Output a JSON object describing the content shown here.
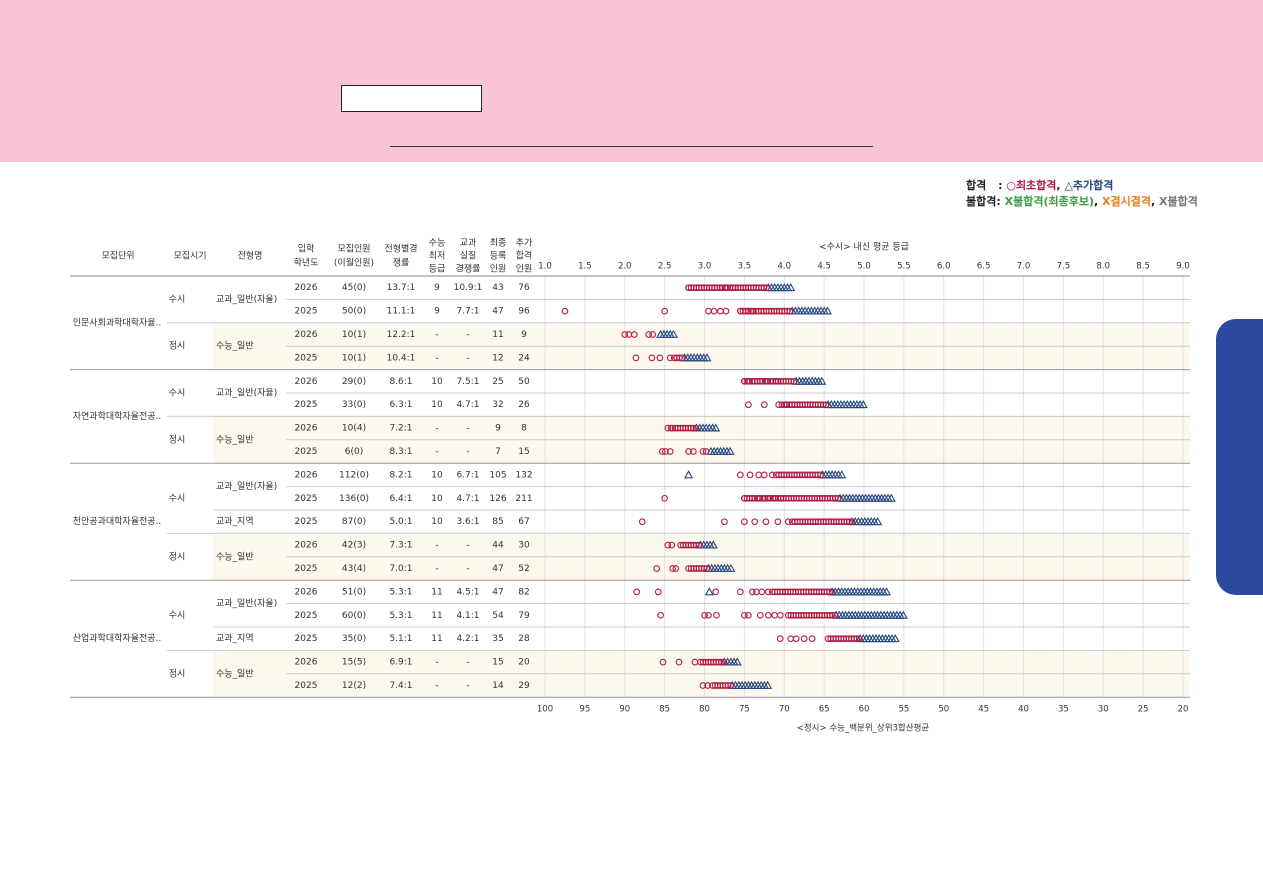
{
  "legend": {
    "pass_label": "합격",
    "pass_sep": ":",
    "first_pass": "○최초합격",
    "comma1": ",",
    "extra_pass": "△추가합격",
    "fail_label": "불합격:",
    "fail_final": "X불합격(최종후보)",
    "comma2": ",",
    "fail_absent": "X결시결격",
    "comma3": ",",
    "fail_other": "X불합격"
  },
  "headers": {
    "unit": "모집단위",
    "period": "모집시기",
    "type": "전형명",
    "year": [
      "입학",
      "학년도"
    ],
    "quota": [
      "모집인원",
      "(이월인원)"
    ],
    "ratio": [
      "전형별경",
      "쟁률"
    ],
    "csat_min": [
      "수능",
      "최저",
      "등급"
    ],
    "subject_ratio": [
      "교과",
      "실질",
      "경쟁률"
    ],
    "registered": [
      "최종",
      "등록",
      "인원"
    ],
    "additional": [
      "추가",
      "합격",
      "인원"
    ],
    "top_axis_title": "<수시> 내신 평균 등급",
    "bottom_axis_title": "<정시> 수능_백분위_상위3합산평균"
  },
  "colors": {
    "first_pass": "#b01c44",
    "extra_pass": "#24477f",
    "banner": "#f9c4d4",
    "side_tab": "#2b4aa0",
    "jeongsi_row_bg": "#fdf8ee"
  },
  "chart_data": {
    "type": "scatter",
    "top_axis": {
      "label": "<수시> 내신 평균 등급",
      "range": [
        1.0,
        9.0
      ],
      "ticks": [
        "1.0",
        "1.5",
        "2.0",
        "2.5",
        "3.0",
        "3.5",
        "4.0",
        "4.5",
        "5.0",
        "5.5",
        "6.0",
        "6.5",
        "7.0",
        "7.5",
        "8.0",
        "8.5",
        "9.0"
      ]
    },
    "bottom_axis": {
      "label": "<정시> 수능_백분위_상위3합산평균",
      "range": [
        100,
        20
      ],
      "ticks": [
        "100",
        "95",
        "90",
        "85",
        "80",
        "75",
        "70",
        "65",
        "60",
        "55",
        "50",
        "45",
        "40",
        "35",
        "30",
        "25",
        "20"
      ]
    },
    "grid": true,
    "legend_position": "top-right",
    "series_names": [
      "○최초합격",
      "△추가합격"
    ],
    "units": [
      {
        "name": "인문사회과학대학자율..",
        "periods": [
          {
            "name": "수시",
            "types": [
              {
                "name": "교과_일반(자율)",
                "rows": [
                  {
                    "year": "2026",
                    "quota": "45(0)",
                    "ratio": "13.7:1",
                    "csat": "9",
                    "real": "10.9:1",
                    "reg": "43",
                    "add": "76",
                    "scale": "grade",
                    "first_range": [
                      2.8,
                      3.35,
                      3.8
                    ],
                    "first_points": [
                      2.8,
                      3.22,
                      3.27,
                      3.36
                    ],
                    "extra_range": [
                      3.8,
                      4.1
                    ]
                  },
                  {
                    "year": "2025",
                    "quota": "50(0)",
                    "ratio": "11.1:1",
                    "csat": "9",
                    "real": "7.7:1",
                    "reg": "47",
                    "add": "96",
                    "scale": "grade",
                    "first_range": [
                      3.45,
                      4.1
                    ],
                    "first_points": [
                      1.25,
                      2.5,
                      3.05,
                      3.12,
                      3.2,
                      3.27,
                      3.45,
                      3.55,
                      3.6
                    ],
                    "extra_range": [
                      4.1,
                      4.55
                    ]
                  }
                ]
              }
            ]
          },
          {
            "name": "정시",
            "types": [
              {
                "name": "수능_일반",
                "rows": [
                  {
                    "year": "2026",
                    "quota": "10(1)",
                    "ratio": "12.2:1",
                    "csat": "-",
                    "real": "-",
                    "reg": "11",
                    "add": "9",
                    "scale": "percentile",
                    "first_range": [],
                    "first_points": [
                      90,
                      89.5,
                      88.8,
                      87,
                      86.5
                    ],
                    "extra_range": [
                      85.5,
                      83.8
                    ]
                  },
                  {
                    "year": "2025",
                    "quota": "10(1)",
                    "ratio": "10.4:1",
                    "csat": "-",
                    "real": "-",
                    "reg": "12",
                    "add": "24",
                    "scale": "percentile",
                    "first_range": [
                      83.8,
                      82.5
                    ],
                    "first_points": [
                      88.6,
                      86.6,
                      85.6,
                      84.3
                    ],
                    "extra_range": [
                      82.5,
                      79.5
                    ]
                  }
                ]
              }
            ]
          }
        ]
      },
      {
        "name": "자연과학대학자율전공..",
        "periods": [
          {
            "name": "수시",
            "types": [
              {
                "name": "교과_일반(자율)",
                "rows": [
                  {
                    "year": "2026",
                    "quota": "29(0)",
                    "ratio": "8.6:1",
                    "csat": "10",
                    "real": "7.5:1",
                    "reg": "25",
                    "add": "50",
                    "scale": "grade",
                    "first_range": [
                      3.5,
                      4.15
                    ],
                    "first_points": [
                      3.5,
                      3.55,
                      3.6,
                      3.7,
                      3.78,
                      3.9
                    ],
                    "extra_range": [
                      4.15,
                      4.5
                    ]
                  },
                  {
                    "year": "2025",
                    "quota": "33(0)",
                    "ratio": "6.3:1",
                    "csat": "10",
                    "real": "4.7:1",
                    "reg": "32",
                    "add": "26",
                    "scale": "grade",
                    "first_range": [
                      4.0,
                      4.55
                    ],
                    "first_points": [
                      3.55,
                      3.75,
                      3.93,
                      3.97,
                      4.02
                    ],
                    "extra_range": [
                      4.55,
                      5.0
                    ]
                  }
                ]
              }
            ]
          },
          {
            "name": "정시",
            "types": [
              {
                "name": "수능_일반",
                "rows": [
                  {
                    "year": "2026",
                    "quota": "10(4)",
                    "ratio": "7.2:1",
                    "csat": "-",
                    "real": "-",
                    "reg": "9",
                    "add": "8",
                    "scale": "percentile",
                    "first_range": [
                      84,
                      81
                    ],
                    "first_points": [
                      84.6,
                      84.2
                    ],
                    "extra_range": [
                      81,
                      78.5
                    ]
                  },
                  {
                    "year": "2025",
                    "quota": "6(0)",
                    "ratio": "8.3:1",
                    "csat": "-",
                    "real": "-",
                    "reg": "7",
                    "add": "15",
                    "scale": "percentile",
                    "first_range": [],
                    "first_points": [
                      85.3,
                      84.9,
                      84.3,
                      82,
                      81.4,
                      80.2,
                      79.8
                    ],
                    "extra_range": [
                      79.2,
                      76.5
                    ]
                  }
                ]
              }
            ]
          }
        ]
      },
      {
        "name": "천안공과대학자율전공..",
        "periods": [
          {
            "name": "수시",
            "types": [
              {
                "name": "교과_일반(자율)",
                "rows": [
                  {
                    "year": "2026",
                    "quota": "112(0)",
                    "ratio": "8.2:1",
                    "csat": "10",
                    "real": "6.7:1",
                    "reg": "105",
                    "add": "132",
                    "scale": "grade",
                    "first_range": [
                      3.9,
                      4.48
                    ],
                    "first_points": [
                      3.45,
                      3.57,
                      3.68,
                      3.75,
                      3.85
                    ],
                    "extra_range": [
                      4.48,
                      4.75
                    ],
                    "extra_points": [
                      2.8
                    ]
                  },
                  {
                    "year": "2025",
                    "quota": "136(0)",
                    "ratio": "6.4:1",
                    "csat": "10",
                    "real": "4.7:1",
                    "reg": "126",
                    "add": "211",
                    "scale": "grade",
                    "first_range": [
                      3.5,
                      4.7
                    ],
                    "first_points": [
                      2.5,
                      3.5,
                      3.6,
                      3.68,
                      3.75,
                      3.8,
                      3.88,
                      3.96
                    ],
                    "extra_range": [
                      4.7,
                      5.35
                    ]
                  }
                ]
              },
              {
                "name": "교과_지역",
                "rows": [
                  {
                    "year": "2025",
                    "quota": "87(0)",
                    "ratio": "5.0:1",
                    "csat": "10",
                    "real": "3.6:1",
                    "reg": "85",
                    "add": "67",
                    "scale": "grade",
                    "first_range": [
                      4.1,
                      4.85
                    ],
                    "first_points": [
                      2.22,
                      3.25,
                      3.5,
                      3.63,
                      3.77,
                      3.92,
                      4.05
                    ],
                    "extra_range": [
                      4.85,
                      5.2
                    ]
                  }
                ]
              }
            ]
          },
          {
            "name": "정시",
            "types": [
              {
                "name": "수능_일반",
                "rows": [
                  {
                    "year": "2026",
                    "quota": "42(3)",
                    "ratio": "7.3:1",
                    "csat": "-",
                    "real": "-",
                    "reg": "44",
                    "add": "30",
                    "scale": "percentile",
                    "first_range": [
                      83,
                      80.5
                    ],
                    "first_points": [
                      84.6,
                      84.1
                    ],
                    "extra_range": [
                      80.5,
                      78.5
                    ]
                  },
                  {
                    "year": "2025",
                    "quota": "43(4)",
                    "ratio": "7.0:1",
                    "csat": "-",
                    "real": "-",
                    "reg": "47",
                    "add": "52",
                    "scale": "percentile",
                    "first_range": [
                      82,
                      79.5
                    ],
                    "first_points": [
                      86,
                      84,
                      83.6
                    ],
                    "extra_range": [
                      79.5,
                      76.5
                    ]
                  }
                ]
              }
            ]
          }
        ]
      },
      {
        "name": "산업과학대학자율전공..",
        "periods": [
          {
            "name": "수시",
            "types": [
              {
                "name": "교과_일반(자율)",
                "rows": [
                  {
                    "year": "2026",
                    "quota": "51(0)",
                    "ratio": "5.3:1",
                    "csat": "11",
                    "real": "4.5:1",
                    "reg": "47",
                    "add": "82",
                    "scale": "grade",
                    "first_range": [
                      3.85,
                      4.6
                    ],
                    "first_points": [
                      2.15,
                      2.42,
                      3.14,
                      3.45,
                      3.6,
                      3.65,
                      3.72,
                      3.8
                    ],
                    "extra_range": [
                      4.6,
                      5.3
                    ],
                    "extra_points": [
                      3.06
                    ]
                  },
                  {
                    "year": "2025",
                    "quota": "60(0)",
                    "ratio": "5.3:1",
                    "csat": "11",
                    "real": "4.1:1",
                    "reg": "54",
                    "add": "79",
                    "scale": "grade",
                    "first_range": [
                      4.05,
                      4.65
                    ],
                    "first_points": [
                      2.45,
                      3.0,
                      3.05,
                      3.15,
                      3.5,
                      3.55,
                      3.7,
                      3.8,
                      3.88,
                      3.95
                    ],
                    "extra_range": [
                      4.65,
                      5.5
                    ]
                  }
                ]
              },
              {
                "name": "교과_지역",
                "rows": [
                  {
                    "year": "2025",
                    "quota": "35(0)",
                    "ratio": "5.1:1",
                    "csat": "11",
                    "real": "4.2:1",
                    "reg": "35",
                    "add": "28",
                    "scale": "grade",
                    "first_range": [
                      4.55,
                      4.95
                    ],
                    "first_points": [
                      3.95,
                      4.08,
                      4.15,
                      4.25,
                      4.35
                    ],
                    "extra_range": [
                      4.95,
                      5.4
                    ]
                  }
                ]
              }
            ]
          },
          {
            "name": "정시",
            "types": [
              {
                "name": "수능_일반",
                "rows": [
                  {
                    "year": "2026",
                    "quota": "15(5)",
                    "ratio": "6.9:1",
                    "csat": "-",
                    "real": "-",
                    "reg": "15",
                    "add": "20",
                    "scale": "percentile",
                    "first_range": [
                      80.5,
                      77.5
                    ],
                    "first_points": [
                      85.2,
                      83.2,
                      81.2
                    ],
                    "extra_range": [
                      77.5,
                      75.5
                    ]
                  },
                  {
                    "year": "2025",
                    "quota": "12(2)",
                    "ratio": "7.4:1",
                    "csat": "-",
                    "real": "-",
                    "reg": "14",
                    "add": "29",
                    "scale": "percentile",
                    "first_range": [
                      79,
                      76.5
                    ],
                    "first_points": [
                      80.2,
                      79.6
                    ],
                    "extra_range": [
                      76.5,
                      72
                    ]
                  }
                ]
              }
            ]
          }
        ]
      }
    ]
  }
}
